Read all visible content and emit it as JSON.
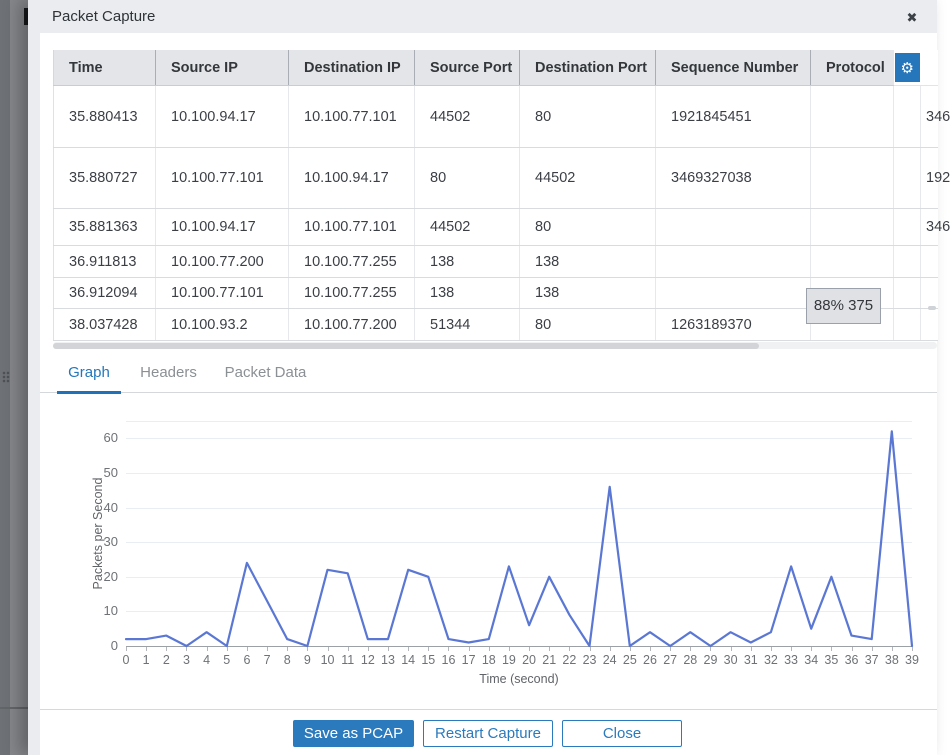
{
  "modal": {
    "title": "Packet Capture",
    "close_icon": "✖"
  },
  "icons": {
    "gear": "⚙",
    "close": "✖"
  },
  "table": {
    "columns": [
      "Time",
      "Source IP",
      "Destination IP",
      "Source Port",
      "Destination Port",
      "Sequence Number",
      "Protocol"
    ],
    "rows": [
      {
        "time": "35.880413",
        "src_ip": "10.100.94.17",
        "dst_ip": "10.100.77.101",
        "src_port": "44502",
        "dst_port": "80",
        "seq": "1921845451",
        "protocol": "",
        "ack_partial": "346"
      },
      {
        "time": "35.880727",
        "src_ip": "10.100.77.101",
        "dst_ip": "10.100.94.17",
        "src_port": "80",
        "dst_port": "44502",
        "seq": "3469327038",
        "protocol": "",
        "ack_partial": "192"
      },
      {
        "time": "35.881363",
        "src_ip": "10.100.94.17",
        "dst_ip": "10.100.77.101",
        "src_port": "44502",
        "dst_port": "80",
        "seq": "",
        "protocol": "",
        "ack_partial": "346"
      },
      {
        "time": "36.911813",
        "src_ip": "10.100.77.200",
        "dst_ip": "10.100.77.255",
        "src_port": "138",
        "dst_port": "138",
        "seq": "",
        "protocol": "",
        "ack_partial": ""
      },
      {
        "time": "36.912094",
        "src_ip": "10.100.77.101",
        "dst_ip": "10.100.77.255",
        "src_port": "138",
        "dst_port": "138",
        "seq": "",
        "protocol": "",
        "ack_partial": ""
      },
      {
        "time": "38.037428",
        "src_ip": "10.100.93.2",
        "dst_ip": "10.100.77.200",
        "src_port": "51344",
        "dst_port": "80",
        "seq": "1263189370",
        "protocol": "",
        "ack_partial": ""
      }
    ],
    "drag_tooltip": "88% 375"
  },
  "tabs": [
    {
      "label": "Graph",
      "active": true
    },
    {
      "label": "Headers",
      "active": false
    },
    {
      "label": "Packet Data",
      "active": false
    }
  ],
  "chart_data": {
    "type": "line",
    "title": "",
    "xlabel": "Time (second)",
    "ylabel": "Packets per Second",
    "x": [
      0,
      1,
      2,
      3,
      4,
      5,
      6,
      7,
      8,
      9,
      10,
      11,
      12,
      13,
      14,
      15,
      16,
      17,
      18,
      19,
      20,
      21,
      22,
      23,
      24,
      25,
      26,
      27,
      28,
      29,
      30,
      31,
      32,
      33,
      34,
      35,
      36,
      37,
      38,
      39
    ],
    "values": [
      2,
      2,
      3,
      0,
      4,
      0,
      24,
      13,
      2,
      0,
      22,
      21,
      2,
      2,
      22,
      20,
      2,
      1,
      2,
      23,
      6,
      20,
      9,
      0,
      46,
      0,
      4,
      0,
      4,
      0,
      4,
      1,
      4,
      23,
      5,
      20,
      3,
      2,
      62,
      0
    ],
    "yticks": [
      0,
      10,
      20,
      30,
      40,
      50,
      60
    ],
    "ylim": [
      0,
      65
    ],
    "grid": true,
    "legend": "none"
  },
  "footer": {
    "buttons": [
      {
        "label": "Save as PCAP",
        "primary": true
      },
      {
        "label": "Restart Capture",
        "primary": false
      },
      {
        "label": "Close",
        "primary": false
      }
    ]
  },
  "colors": {
    "accent_blue": "#2b7abd",
    "gear_button_blue": "#2676bb",
    "chart_line": "#5a77d4",
    "tab_active": "#2277bb",
    "header_bg": "#e4e5e8",
    "backdrop": "#85878b"
  }
}
